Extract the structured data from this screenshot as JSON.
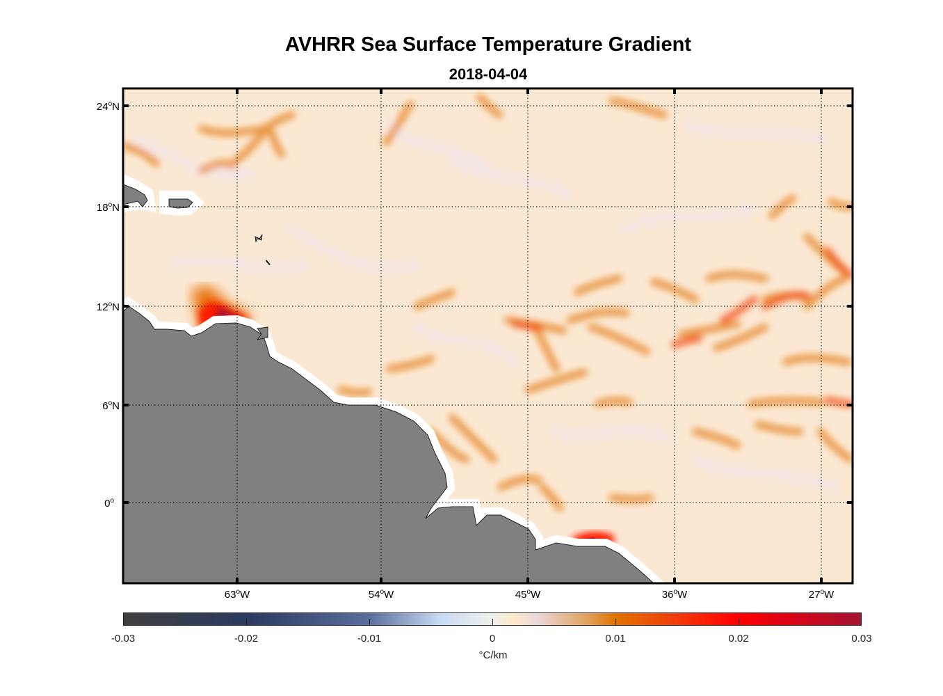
{
  "title": "AVHRR Sea Surface Temperature Gradient",
  "subtitle": "2018-04-04",
  "chart_data": {
    "type": "heatmap",
    "title": "AVHRR Sea Surface Temperature Gradient",
    "subtitle": "2018-04-04",
    "lon_range": [
      -70,
      -25
    ],
    "lat_range": [
      -5,
      25
    ],
    "y_ticks": [
      {
        "value": 24,
        "deg": "24",
        "hem": "N"
      },
      {
        "value": 18,
        "deg": "18",
        "hem": "N"
      },
      {
        "value": 12,
        "deg": "12",
        "hem": "N"
      },
      {
        "value": 6,
        "deg": "6",
        "hem": "N"
      },
      {
        "value": 0,
        "deg": "0",
        "hem": ""
      }
    ],
    "x_ticks": [
      {
        "value": -63,
        "deg": "63",
        "hem": "W"
      },
      {
        "value": -54,
        "deg": "54",
        "hem": "W"
      },
      {
        "value": -45,
        "deg": "45",
        "hem": "W"
      },
      {
        "value": -36,
        "deg": "36",
        "hem": "W"
      },
      {
        "value": -27,
        "deg": "27",
        "hem": "W"
      }
    ],
    "grid": true,
    "land_color": "#808080",
    "colorbar": {
      "range": [
        -0.03,
        0.03
      ],
      "ticks": [
        "-0.03",
        "-0.02",
        "-0.01",
        "0",
        "0.01",
        "0.02",
        "0.03"
      ],
      "label": "°C/km",
      "placement": "bottom"
    },
    "hotspots": [
      {
        "lon": -63,
        "lat": 11,
        "value": 0.03
      },
      {
        "lon": -39.5,
        "lat": -2.3,
        "value": 0.03
      }
    ]
  }
}
